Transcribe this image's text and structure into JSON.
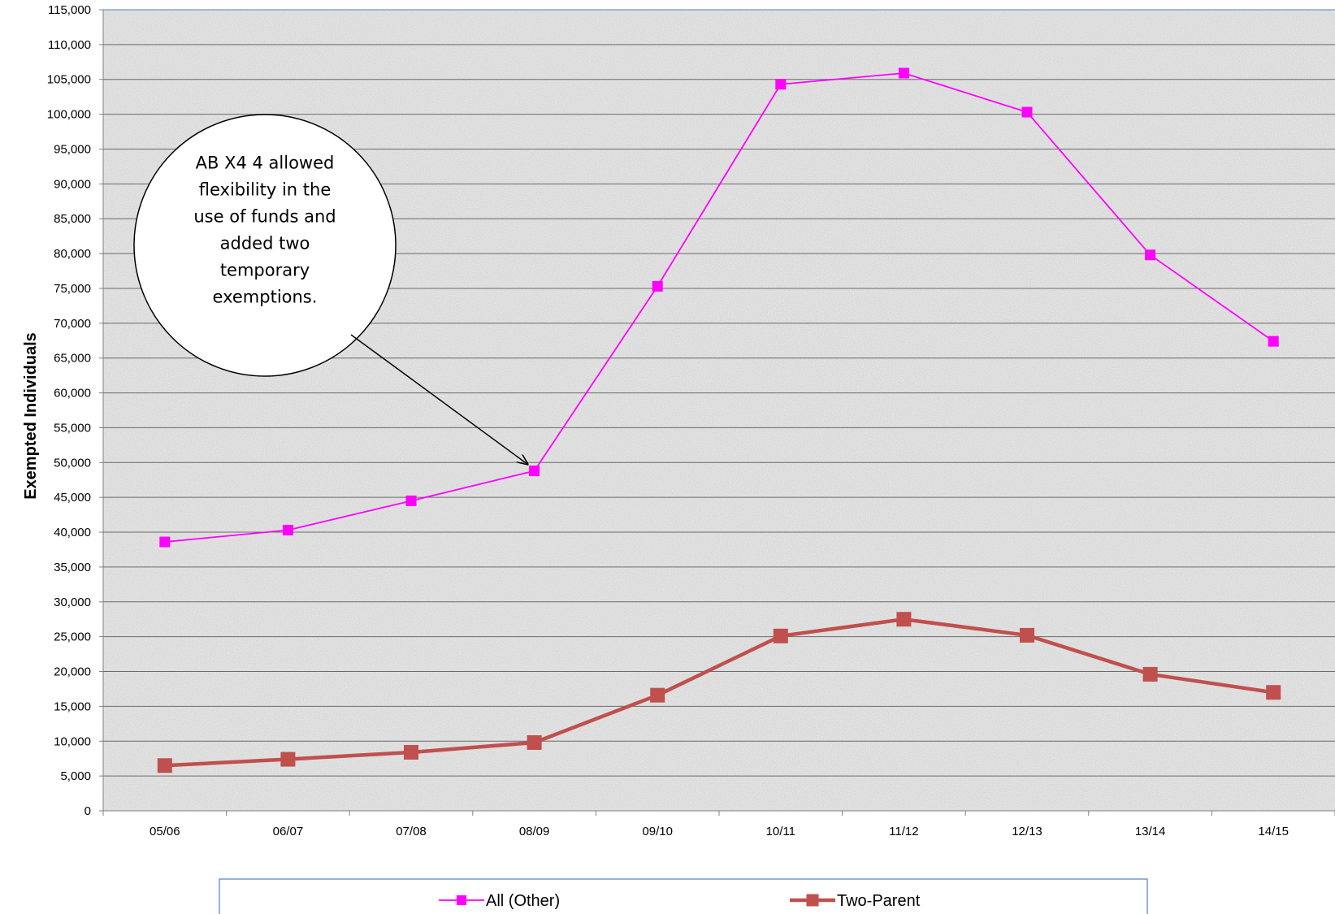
{
  "chart_data": {
    "type": "line",
    "ylabel": "Exempted Individuals",
    "xlabel": "",
    "ylim": [
      0,
      115000
    ],
    "ytick_step": 5000,
    "grid": true,
    "legend_position": "bottom",
    "categories": [
      "05/06",
      "06/07",
      "07/08",
      "08/09",
      "09/10",
      "10/11",
      "11/12",
      "12/13",
      "13/14",
      "14/15"
    ],
    "series": [
      {
        "name": "All (Other)",
        "color": "#ff00ff",
        "marker": "square",
        "values": [
          38600,
          40300,
          44500,
          48800,
          75300,
          104300,
          105900,
          100300,
          79800,
          67400
        ]
      },
      {
        "name": "Two-Parent",
        "color": "#c0504d",
        "marker": "square",
        "values": [
          6500,
          7400,
          8400,
          9800,
          16600,
          25100,
          27500,
          25200,
          19600,
          17000
        ]
      }
    ],
    "annotations": [
      {
        "lines": [
          "AB X4 4 allowed",
          "flexibility in the",
          "use of funds and",
          "added two",
          "temporary",
          "exemptions."
        ],
        "points_to_category": "08/09",
        "points_to_series": "All (Other)"
      }
    ]
  }
}
